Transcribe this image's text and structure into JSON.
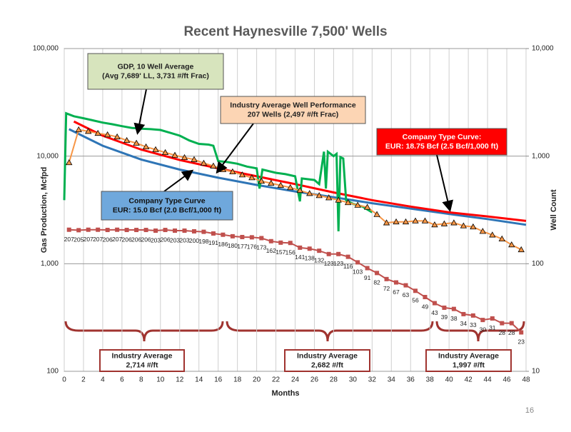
{
  "chart_data": {
    "type": "line",
    "title": "Recent Haynesville 7,500' Wells",
    "x_label": "Months",
    "y_label": "Gas Production, Mcfpd",
    "y2_label": "Well Count",
    "xlim": [
      0,
      48
    ],
    "xticks": [
      0,
      2,
      4,
      6,
      8,
      10,
      12,
      14,
      16,
      18,
      20,
      22,
      24,
      26,
      28,
      30,
      32,
      34,
      36,
      38,
      40,
      42,
      44,
      46,
      48
    ],
    "ylim": [
      100,
      100000
    ],
    "y_log": true,
    "yticks": [
      {
        "value": 100,
        "label": "100"
      },
      {
        "value": 1000,
        "label": "1,000"
      },
      {
        "value": 10000,
        "label": "10,000"
      },
      {
        "value": 100000,
        "label": "100,000"
      }
    ],
    "y2lim": [
      10,
      10000
    ],
    "y2ticks": [
      {
        "value": 10,
        "label": "10"
      },
      {
        "value": 100,
        "label": "100"
      },
      {
        "value": 1000,
        "label": "1,000"
      },
      {
        "value": 10000,
        "label": "10,000"
      }
    ],
    "grid": true,
    "series": [
      {
        "color": "#2e75b6",
        "marker": "none",
        "x": [
          0.5,
          4,
          8,
          12,
          16,
          20,
          24,
          28,
          32,
          36,
          40,
          44,
          48
        ],
        "values": [
          17800,
          12500,
          9300,
          7500,
          6300,
          5400,
          4700,
          4150,
          3650,
          3250,
          2900,
          2600,
          2300
        ]
      },
      {
        "color": "#ff0000",
        "marker": "none",
        "x": [
          1,
          4,
          8,
          12,
          16,
          20,
          24,
          28,
          32,
          36,
          40,
          44,
          48
        ],
        "values": [
          21000,
          15500,
          11500,
          9200,
          7700,
          6500,
          5500,
          4600,
          3900,
          3400,
          3000,
          2750,
          2500
        ]
      },
      {
        "color": "#00b050",
        "marker": "none",
        "x": [
          0,
          0.2,
          1,
          2,
          3,
          4,
          5,
          6,
          7,
          8,
          9,
          10,
          11,
          12,
          13,
          14,
          15,
          15.5,
          16,
          17,
          18,
          19,
          20,
          20.3,
          20.6,
          22,
          23,
          24,
          24.5,
          24.7,
          26,
          26.5,
          27,
          27.2,
          27.4,
          28,
          28.3,
          28.5,
          28.7,
          29,
          29.3,
          30,
          31,
          32
        ],
        "values": [
          3900,
          25000,
          23500,
          22500,
          21500,
          20500,
          19800,
          19000,
          18300,
          18000,
          17800,
          17500,
          16500,
          15500,
          14000,
          13000,
          12800,
          12500,
          9000,
          8800,
          8500,
          8000,
          7700,
          5000,
          7500,
          7000,
          6800,
          6500,
          3800,
          6200,
          6000,
          5500,
          11000,
          5000,
          11000,
          10000,
          10500,
          2000,
          9800,
          9500,
          3900,
          3600,
          3400,
          3000
        ]
      },
      {
        "color": "#f79646",
        "marker": "triangle",
        "x": [
          0.5,
          1.5,
          2.5,
          3.5,
          4.5,
          5.5,
          6.5,
          7.5,
          8.5,
          9.5,
          10.5,
          11.5,
          12.5,
          13.5,
          14.5,
          15.5,
          16.5,
          17.5,
          18.5,
          19.5,
          20.5,
          21.5,
          22.5,
          23.5,
          24.5,
          25.5,
          26.5,
          27.5,
          28.5,
          29.5,
          30.5,
          31.5,
          32.5,
          33.5,
          34.5,
          35.5,
          36.5,
          37.5,
          38.5,
          39.5,
          40.5,
          41.5,
          42.5,
          43.5,
          44.5,
          45.5,
          46.5,
          47.5
        ],
        "values": [
          8700,
          17600,
          17000,
          16300,
          15800,
          15100,
          14000,
          13200,
          12200,
          11500,
          10800,
          10200,
          9700,
          9300,
          8600,
          8100,
          7500,
          7150,
          6700,
          6300,
          5850,
          5600,
          5350,
          5100,
          4800,
          4500,
          4300,
          4100,
          3900,
          3700,
          3500,
          3350,
          2870,
          2400,
          2450,
          2450,
          2500,
          2500,
          2300,
          2350,
          2400,
          2250,
          2200,
          2000,
          1850,
          1700,
          1500,
          1350
        ]
      },
      {
        "color": "#c0504d",
        "marker": "square",
        "axis": "y2",
        "labels": true,
        "x": [
          0.5,
          1.5,
          2.5,
          3.5,
          4.5,
          5.5,
          6.5,
          7.5,
          8.5,
          9.5,
          10.5,
          11.5,
          12.5,
          13.5,
          14.5,
          15.5,
          16.5,
          17.5,
          18.5,
          19.5,
          20.5,
          21.5,
          22.5,
          23.5,
          24.5,
          25.5,
          26.5,
          27.5,
          28.5,
          29.5,
          30.5,
          31.5,
          32.5,
          33.5,
          34.5,
          35.5,
          36.5,
          37.5,
          38.5,
          39.5,
          40.5,
          41.5,
          42.5,
          43.5,
          44.5,
          45.5,
          46.5,
          47.5
        ],
        "values": [
          207,
          205,
          207,
          207,
          206,
          207,
          206,
          206,
          206,
          203,
          206,
          203,
          203,
          200,
          198,
          191,
          186,
          180,
          177,
          176,
          173,
          162,
          157,
          156,
          141,
          138,
          132,
          123,
          123,
          116,
          103,
          91,
          82,
          72,
          67,
          63,
          56,
          49,
          43,
          39,
          38,
          34,
          33,
          30,
          31,
          28,
          28,
          23
        ]
      }
    ],
    "annotations": [
      {
        "lines": [
          "GDP, 10 Well Average",
          "(Avg 7,689' LL, 3,731 #/ft Frac)"
        ]
      },
      {
        "lines": [
          "Industry Average Well Performance",
          "207 Wells (2,497 #/ft Frac)"
        ]
      },
      {
        "lines": [
          "Company Type Curve:",
          "EUR: 18.75 Bcf (2.5 Bcf/1,000 ft)"
        ]
      },
      {
        "lines": [
          "Company Type Curve",
          "EUR: 15.0 Bcf (2.0 Bcf/1,000 ft)"
        ]
      },
      {
        "lines": [
          "Industry Average",
          "2,714 #/ft"
        ]
      },
      {
        "lines": [
          "Industry Average",
          "2,682 #/ft"
        ]
      },
      {
        "lines": [
          "Industry Average",
          "1,997 #/ft"
        ]
      }
    ],
    "page_number": "16"
  }
}
